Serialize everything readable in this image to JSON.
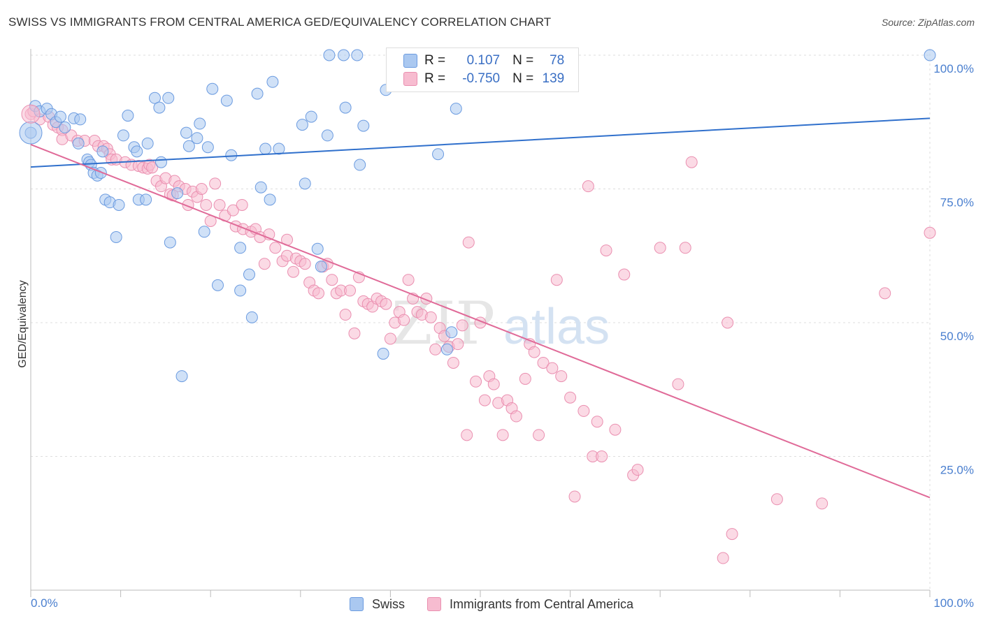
{
  "title": "SWISS VS IMMIGRANTS FROM CENTRAL AMERICA GED/EQUIVALENCY CORRELATION CHART",
  "source": "Source: ZipAtlas.com",
  "watermark": {
    "zip": "ZIP",
    "atlas": "atlas"
  },
  "legend": {
    "r_label": "R =",
    "n_label": "N =",
    "series1": {
      "r": "0.107",
      "n": "78"
    },
    "series2": {
      "r": "-0.750",
      "n": "139"
    }
  },
  "colors": {
    "swiss_fill": "#aac8f0",
    "swiss_stroke": "#6b9be0",
    "swiss_line": "#3070cc",
    "ca_fill": "#f7bcd0",
    "ca_stroke": "#ea8fb0",
    "ca_line": "#e06a98",
    "grid": "#dddddd",
    "tick_label": "#4a7fcf"
  },
  "chart_data": {
    "type": "scatter",
    "title": "SWISS VS IMMIGRANTS FROM CENTRAL AMERICA GED/EQUIVALENCY CORRELATION CHART",
    "xlabel": "",
    "ylabel": "GED/Equivalency",
    "xlim": [
      0,
      100
    ],
    "ylim": [
      0,
      102
    ],
    "x_tick_labels": [
      "0.0%",
      "100.0%"
    ],
    "y_tick_labels": [
      "25.0%",
      "50.0%",
      "75.0%",
      "100.0%"
    ],
    "y_ticks": [
      25,
      50,
      75,
      100
    ],
    "grid": true,
    "legend_position": "top-center",
    "series": [
      {
        "name": "Swiss",
        "r": 0.107,
        "n": 78,
        "trend": [
          [
            0,
            79.1
          ],
          [
            100,
            88.2
          ]
        ],
        "points": [
          [
            0,
            85.5
          ],
          [
            0.5,
            90.5
          ],
          [
            1,
            89.5
          ],
          [
            1.8,
            90
          ],
          [
            2.3,
            89
          ],
          [
            2.8,
            87.5
          ],
          [
            3.3,
            88.5
          ],
          [
            3.8,
            86.5
          ],
          [
            4.8,
            88.2
          ],
          [
            5.3,
            83.5
          ],
          [
            5.5,
            88
          ],
          [
            6.3,
            80.5
          ],
          [
            6.5,
            80
          ],
          [
            6.7,
            79.5
          ],
          [
            7,
            78
          ],
          [
            7.4,
            77.5
          ],
          [
            7.8,
            78
          ],
          [
            8,
            82
          ],
          [
            8.3,
            73
          ],
          [
            8.8,
            72.5
          ],
          [
            9.8,
            72
          ],
          [
            9.5,
            66
          ],
          [
            10.3,
            85
          ],
          [
            10.8,
            88.7
          ],
          [
            11.5,
            82.8
          ],
          [
            11.8,
            82
          ],
          [
            12,
            73
          ],
          [
            12.8,
            73
          ],
          [
            13,
            83.5
          ],
          [
            13.8,
            92
          ],
          [
            14.3,
            90.2
          ],
          [
            14.5,
            80
          ],
          [
            15.3,
            92
          ],
          [
            15.5,
            65
          ],
          [
            16.3,
            74.2
          ],
          [
            16.8,
            40
          ],
          [
            17.3,
            85.5
          ],
          [
            17.6,
            83
          ],
          [
            18.5,
            84.5
          ],
          [
            18.8,
            87.2
          ],
          [
            19.3,
            67
          ],
          [
            19.7,
            82.8
          ],
          [
            20.2,
            93.7
          ],
          [
            20.8,
            57
          ],
          [
            21.8,
            91.5
          ],
          [
            22.3,
            81.3
          ],
          [
            23.3,
            56
          ],
          [
            23.3,
            64
          ],
          [
            24.3,
            59
          ],
          [
            24.6,
            51
          ],
          [
            25.2,
            92.8
          ],
          [
            25.6,
            75.3
          ],
          [
            26.1,
            82.5
          ],
          [
            26.6,
            73
          ],
          [
            26.9,
            95
          ],
          [
            27.6,
            82.5
          ],
          [
            30.2,
            87
          ],
          [
            30.5,
            76
          ],
          [
            31.2,
            88.5
          ],
          [
            31.9,
            63.8
          ],
          [
            32.3,
            60.5
          ],
          [
            33,
            85
          ],
          [
            33.2,
            100
          ],
          [
            34.8,
            100
          ],
          [
            35,
            90.2
          ],
          [
            36.3,
            100
          ],
          [
            36.6,
            79.5
          ],
          [
            37,
            86.8
          ],
          [
            39.2,
            44.2
          ],
          [
            39.5,
            93.5
          ],
          [
            41,
            100
          ],
          [
            45.2,
            100
          ],
          [
            45.5,
            100
          ],
          [
            45.3,
            81.5
          ],
          [
            46.3,
            45
          ],
          [
            46.8,
            48.2
          ],
          [
            47.3,
            90
          ],
          [
            100,
            100
          ]
        ]
      },
      {
        "name": "Immigrants from Central America",
        "r": -0.75,
        "n": 139,
        "trend": [
          [
            0,
            83.3
          ],
          [
            100,
            17.3
          ]
        ],
        "points": [
          [
            0,
            89
          ],
          [
            0.3,
            89.5
          ],
          [
            1,
            88
          ],
          [
            2,
            88.5
          ],
          [
            2.5,
            87
          ],
          [
            3,
            86.5
          ],
          [
            3.5,
            86
          ],
          [
            3.5,
            84.3
          ],
          [
            4.5,
            85
          ],
          [
            5.2,
            84
          ],
          [
            6,
            84
          ],
          [
            7.1,
            84
          ],
          [
            7.5,
            83
          ],
          [
            8.1,
            83
          ],
          [
            8.5,
            82.5
          ],
          [
            8.8,
            81.5
          ],
          [
            9,
            80.5
          ],
          [
            9.5,
            80.5
          ],
          [
            10.5,
            80
          ],
          [
            11.2,
            79.5
          ],
          [
            12,
            79.3
          ],
          [
            12.5,
            79
          ],
          [
            13,
            78.8
          ],
          [
            13.2,
            79.5
          ],
          [
            13.5,
            79
          ],
          [
            14,
            76.5
          ],
          [
            14.5,
            75.5
          ],
          [
            15,
            77
          ],
          [
            15.5,
            74
          ],
          [
            15.8,
            73.8
          ],
          [
            16,
            76.5
          ],
          [
            16.5,
            75.5
          ],
          [
            17.2,
            75
          ],
          [
            17.5,
            72
          ],
          [
            18,
            74.5
          ],
          [
            18.5,
            73.5
          ],
          [
            19,
            75
          ],
          [
            19.5,
            72
          ],
          [
            20,
            69
          ],
          [
            20.5,
            76
          ],
          [
            21,
            72
          ],
          [
            21.6,
            70
          ],
          [
            22.5,
            71
          ],
          [
            22.8,
            68
          ],
          [
            23.5,
            72
          ],
          [
            23.6,
            67.5
          ],
          [
            24.5,
            67
          ],
          [
            25,
            67.5
          ],
          [
            25.5,
            66
          ],
          [
            26,
            61
          ],
          [
            26.5,
            66.5
          ],
          [
            27.2,
            64
          ],
          [
            28,
            61.5
          ],
          [
            28.5,
            65.5
          ],
          [
            28.5,
            62.5
          ],
          [
            29.2,
            59.5
          ],
          [
            29.5,
            62
          ],
          [
            30,
            61.5
          ],
          [
            30.5,
            61
          ],
          [
            31,
            57.5
          ],
          [
            31.5,
            56
          ],
          [
            32,
            55.5
          ],
          [
            32.5,
            60.5
          ],
          [
            33,
            61
          ],
          [
            33.5,
            58
          ],
          [
            34,
            55.5
          ],
          [
            34.5,
            56
          ],
          [
            35,
            51.5
          ],
          [
            35.5,
            56
          ],
          [
            36,
            48
          ],
          [
            36.5,
            58.5
          ],
          [
            37,
            54
          ],
          [
            37.5,
            53.5
          ],
          [
            38,
            53
          ],
          [
            38.5,
            54.5
          ],
          [
            39,
            54
          ],
          [
            39.5,
            53.5
          ],
          [
            40,
            47
          ],
          [
            40.5,
            50
          ],
          [
            41,
            52
          ],
          [
            41.5,
            50.5
          ],
          [
            42,
            58
          ],
          [
            42.5,
            54.5
          ],
          [
            43,
            52
          ],
          [
            43.5,
            51.5
          ],
          [
            44,
            54.5
          ],
          [
            44.5,
            51
          ],
          [
            45,
            45
          ],
          [
            45.5,
            49
          ],
          [
            46,
            47.5
          ],
          [
            46.5,
            45.5
          ],
          [
            47,
            42.5
          ],
          [
            47.5,
            46
          ],
          [
            48,
            49.5
          ],
          [
            48.5,
            29
          ],
          [
            48.7,
            65
          ],
          [
            49.5,
            39
          ],
          [
            50,
            50
          ],
          [
            50.5,
            35.5
          ],
          [
            51,
            40
          ],
          [
            51.5,
            38.5
          ],
          [
            52,
            35
          ],
          [
            52.5,
            29
          ],
          [
            53,
            35.5
          ],
          [
            53.5,
            34
          ],
          [
            54,
            32.5
          ],
          [
            55,
            39.5
          ],
          [
            55.5,
            46
          ],
          [
            56,
            44.5
          ],
          [
            56.5,
            29
          ],
          [
            57,
            42.5
          ],
          [
            58,
            41.5
          ],
          [
            58.5,
            58
          ],
          [
            59,
            40
          ],
          [
            60,
            36
          ],
          [
            60.5,
            17.5
          ],
          [
            61.5,
            33.5
          ],
          [
            62,
            75.5
          ],
          [
            62.5,
            25
          ],
          [
            63,
            31.5
          ],
          [
            63.5,
            25
          ],
          [
            64,
            63.5
          ],
          [
            65,
            30
          ],
          [
            66,
            59
          ],
          [
            67,
            21.5
          ],
          [
            67.5,
            22.5
          ],
          [
            70,
            64
          ],
          [
            72,
            38.5
          ],
          [
            72.8,
            64
          ],
          [
            73.5,
            80
          ],
          [
            77,
            6
          ],
          [
            77.5,
            50
          ],
          [
            78,
            10.5
          ],
          [
            83,
            17
          ],
          [
            88,
            16.2
          ],
          [
            95,
            55.5
          ],
          [
            100,
            66.8
          ]
        ]
      }
    ]
  },
  "bottom_legend": [
    "Swiss",
    "Immigrants from Central America"
  ]
}
